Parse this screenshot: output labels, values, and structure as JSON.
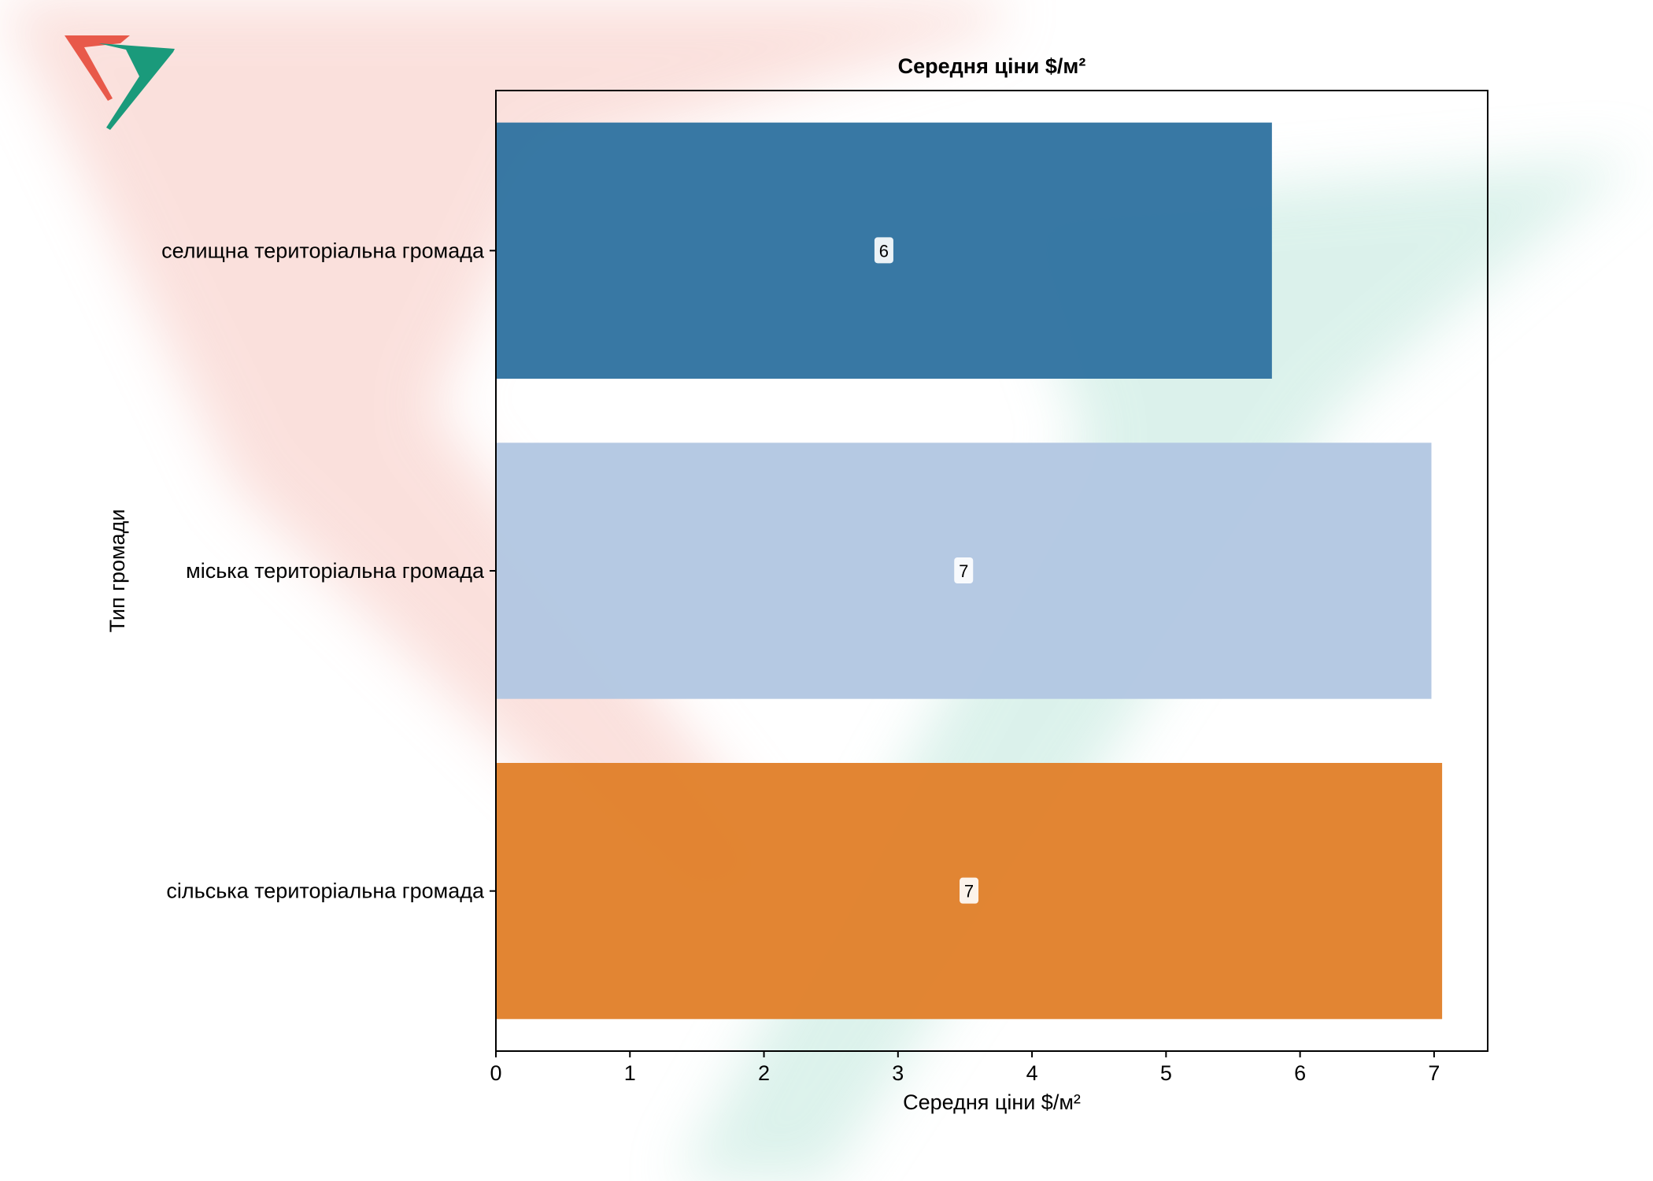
{
  "chart_data": {
    "type": "bar",
    "orientation": "horizontal",
    "title": "Середня ціни $/м²",
    "xlabel": "Середня ціни $/м²",
    "ylabel": "Тип громади",
    "categories": [
      "селищна територіальна громада",
      "міська територіальна громада",
      "сільська територіальна громада"
    ],
    "values": [
      5.79,
      6.98,
      7.06
    ],
    "data_labels": [
      "6",
      "7",
      "7"
    ],
    "colors": [
      "#3274a1",
      "#b3c7e2",
      "#e1812c"
    ],
    "xlim": [
      0,
      7.4
    ],
    "xticks": [
      "0",
      "1",
      "2",
      "3",
      "4",
      "5",
      "6",
      "7"
    ],
    "grid": false,
    "legend": "none"
  },
  "logo": {
    "icon": "logo-icon",
    "colors": [
      "#e8594a",
      "#1a9a7b"
    ]
  },
  "watermark": {
    "icon": "logo-watermark",
    "colors": [
      "#fbe2de",
      "#dcf2ec"
    ]
  }
}
